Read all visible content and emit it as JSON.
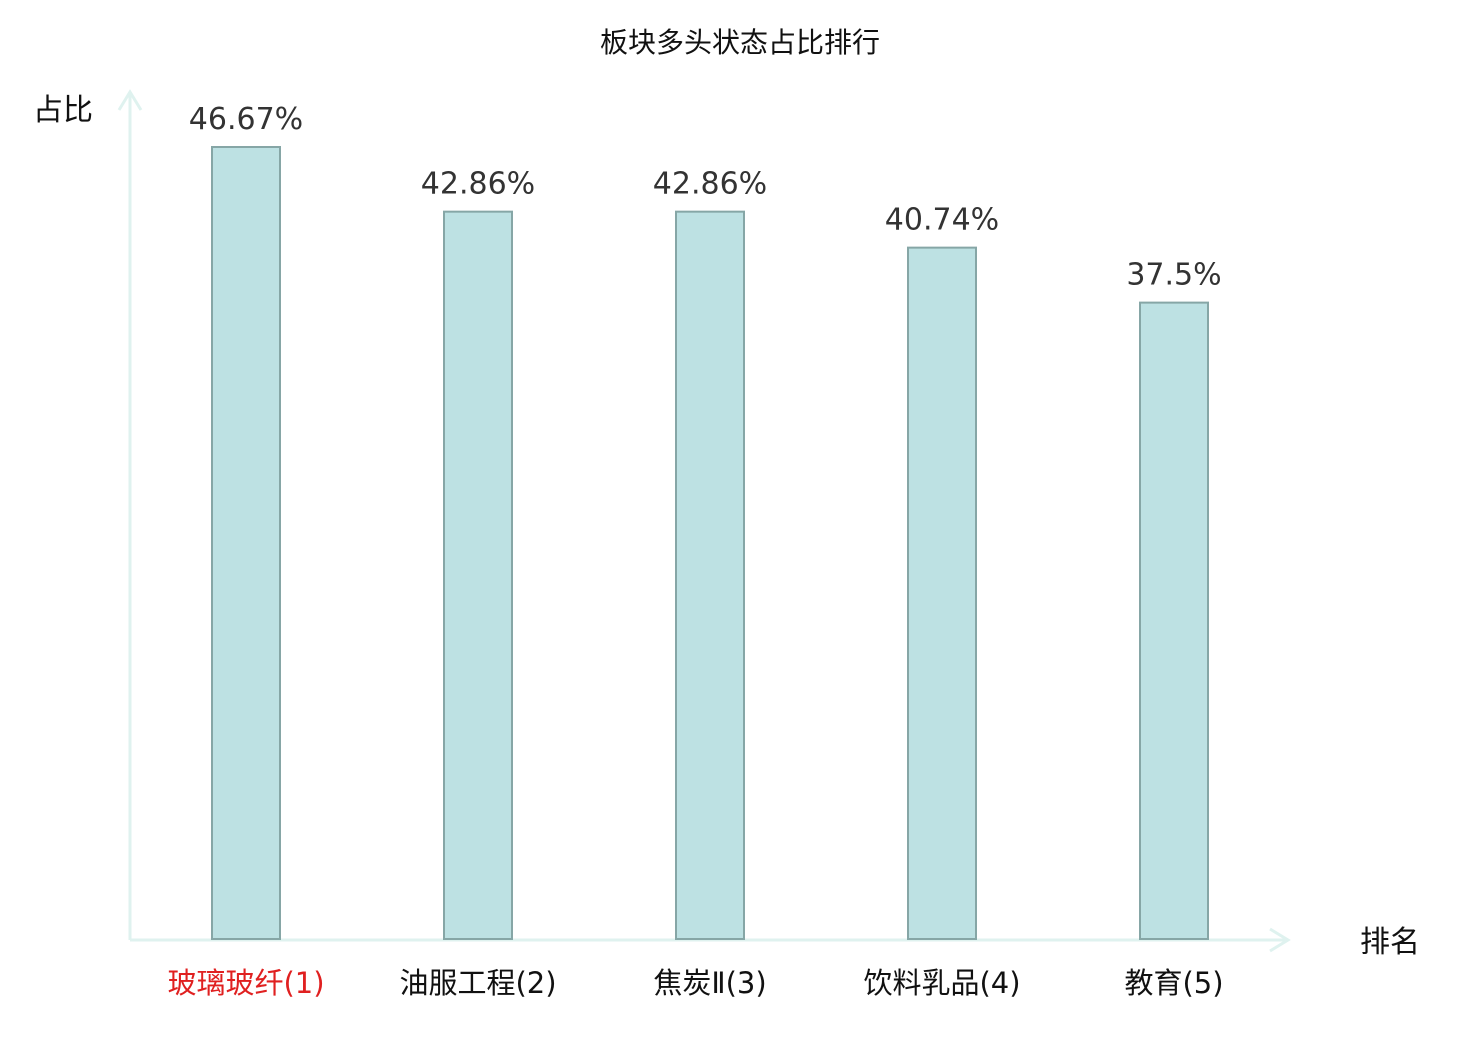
{
  "chart_data": {
    "type": "bar",
    "title": "板块多头状态占比排行",
    "ylabel": "占比",
    "xlabel": "排名",
    "categories": [
      "玻璃玻纤(1)",
      "油服工程(2)",
      "焦炭Ⅱ(3)",
      "饮料乳品(4)",
      "教育(5)"
    ],
    "values": [
      46.67,
      42.86,
      42.86,
      40.74,
      37.5
    ],
    "value_labels": [
      "46.67%",
      "42.86%",
      "42.86%",
      "40.74%",
      "37.5%"
    ],
    "ylim": [
      0,
      50
    ],
    "grid": false,
    "legend": "none",
    "highlight_index": 0,
    "colors": {
      "bar_fill": "#bde1e3",
      "bar_stroke": "#86a6a6",
      "axis": "#dff2ef",
      "highlight_label": "#e02020",
      "label": "#111111"
    }
  }
}
